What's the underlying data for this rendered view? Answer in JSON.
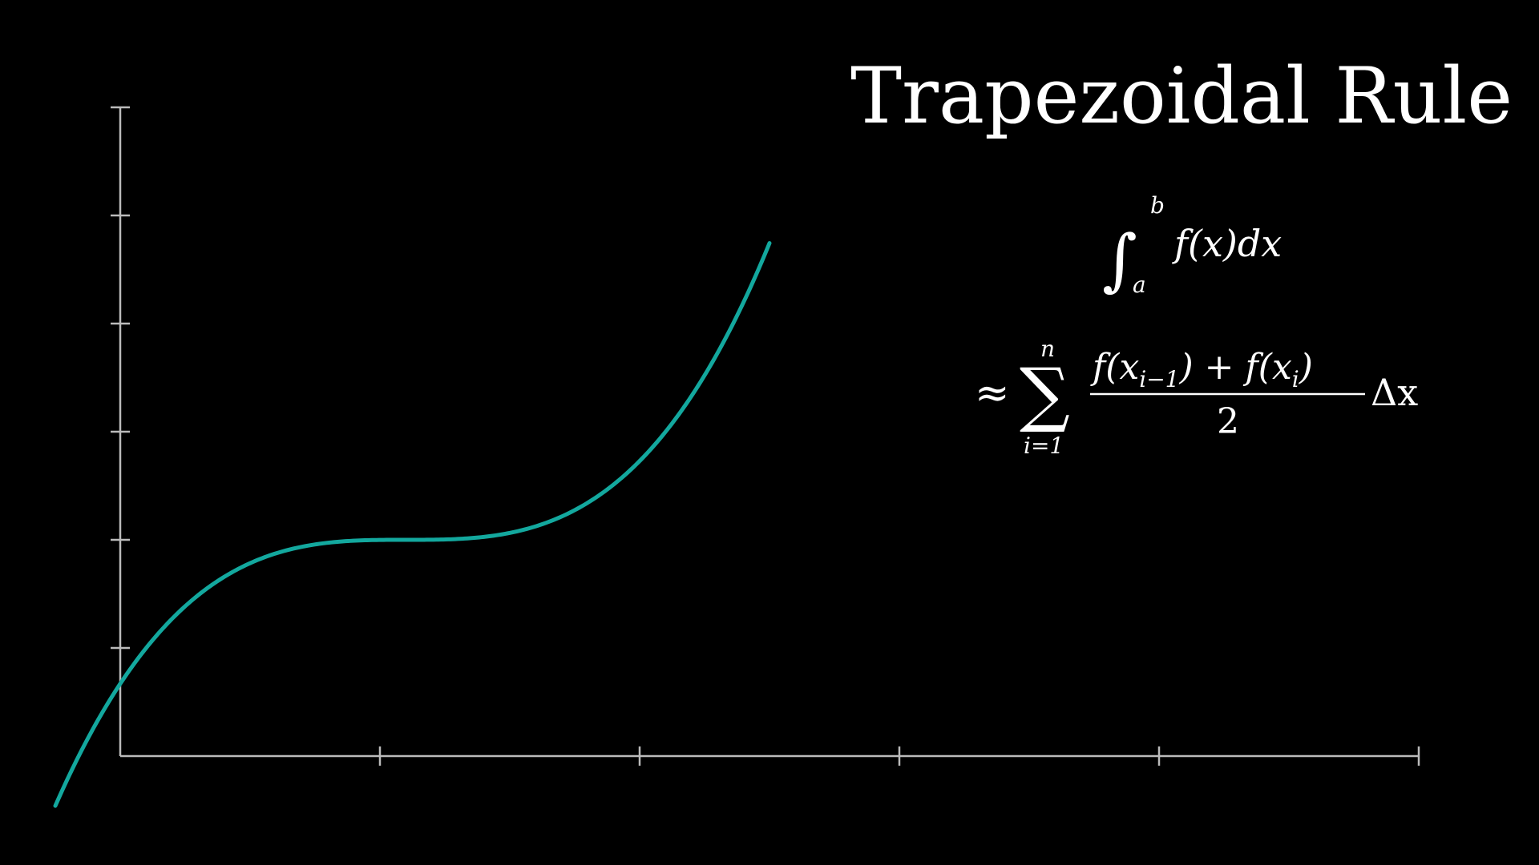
{
  "title": "Trapezoidal Rule",
  "formula": {
    "integral_upper": "b",
    "integral_lower": "a",
    "integrand": "f(x)dx",
    "approx": "≈",
    "sigma": "∑",
    "sum_upper": "n",
    "sum_lower": "i=1",
    "numerator_a": "f(x",
    "numerator_a_sub": "i−1",
    "numerator_mid": ") + f(x",
    "numerator_b_sub": "i",
    "numerator_end": ")",
    "denominator": "2",
    "delta": "Δx"
  },
  "colors": {
    "background": "#000000",
    "axis": "#bbbbbb",
    "curve": "#13a89e",
    "text": "#ffffff"
  },
  "chart_data": {
    "type": "line",
    "title": "",
    "xlabel": "",
    "ylabel": "",
    "xlim": [
      0,
      5
    ],
    "ylim": [
      0,
      6
    ],
    "x_ticks": [
      1,
      2,
      3,
      4,
      5
    ],
    "y_ticks": [
      1,
      2,
      3,
      4,
      5,
      6
    ],
    "grid": false,
    "series": [
      {
        "function": "f(x) = (x - 1.1)^3 + 2",
        "x_range": [
          -0.25,
          2.5
        ]
      }
    ]
  }
}
